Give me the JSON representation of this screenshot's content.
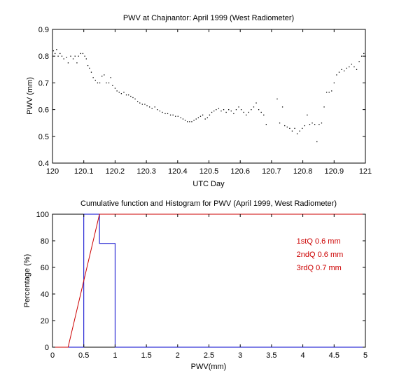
{
  "chart_data": [
    {
      "type": "scatter",
      "title": "PWV at Chajnantor: April 1999 (West Radiometer)",
      "xlabel": "UTC Day",
      "ylabel": "PWV (mm)",
      "xlim": [
        120,
        121
      ],
      "ylim": [
        0.4,
        0.9
      ],
      "xticks": [
        120,
        120.1,
        120.2,
        120.3,
        120.4,
        120.5,
        120.6,
        120.7,
        120.8,
        120.9,
        121
      ],
      "xtick_labels": [
        "120",
        "120.1",
        "120.2",
        "120.3",
        "120.4",
        "120.5",
        "120.6",
        "120.7",
        "120.8",
        "120.9",
        "121"
      ],
      "yticks": [
        0.4,
        0.5,
        0.6,
        0.7,
        0.8,
        0.9
      ],
      "ytick_labels": [
        "0.4",
        "0.5",
        "0.6",
        "0.7",
        "0.8",
        "0.9"
      ],
      "grid": false,
      "marker_color": "#000000",
      "points": [
        [
          120.003,
          0.82
        ],
        [
          120.008,
          0.81
        ],
        [
          120.013,
          0.825
        ],
        [
          120.018,
          0.8
        ],
        [
          120.024,
          0.81
        ],
        [
          120.03,
          0.8
        ],
        [
          120.036,
          0.79
        ],
        [
          120.045,
          0.795
        ],
        [
          120.05,
          0.775
        ],
        [
          120.058,
          0.8
        ],
        [
          120.066,
          0.79
        ],
        [
          120.072,
          0.8
        ],
        [
          120.078,
          0.775
        ],
        [
          120.083,
          0.8
        ],
        [
          120.09,
          0.81
        ],
        [
          120.097,
          0.81
        ],
        [
          120.103,
          0.8
        ],
        [
          120.108,
          0.79
        ],
        [
          120.113,
          0.765
        ],
        [
          120.118,
          0.755
        ],
        [
          120.124,
          0.74
        ],
        [
          120.13,
          0.72
        ],
        [
          120.137,
          0.71
        ],
        [
          120.144,
          0.7
        ],
        [
          120.151,
          0.7
        ],
        [
          120.158,
          0.725
        ],
        [
          120.165,
          0.73
        ],
        [
          120.172,
          0.7
        ],
        [
          120.18,
          0.7
        ],
        [
          120.186,
          0.72
        ],
        [
          120.192,
          0.69
        ],
        [
          120.2,
          0.68
        ],
        [
          120.206,
          0.67
        ],
        [
          120.213,
          0.665
        ],
        [
          120.22,
          0.66
        ],
        [
          120.228,
          0.665
        ],
        [
          120.236,
          0.655
        ],
        [
          120.243,
          0.655
        ],
        [
          120.25,
          0.65
        ],
        [
          120.257,
          0.645
        ],
        [
          120.264,
          0.64
        ],
        [
          120.272,
          0.63
        ],
        [
          120.279,
          0.625
        ],
        [
          120.287,
          0.62
        ],
        [
          120.295,
          0.62
        ],
        [
          120.302,
          0.615
        ],
        [
          120.31,
          0.61
        ],
        [
          120.318,
          0.605
        ],
        [
          120.327,
          0.61
        ],
        [
          120.335,
          0.6
        ],
        [
          120.343,
          0.595
        ],
        [
          120.351,
          0.59
        ],
        [
          120.36,
          0.585
        ],
        [
          120.368,
          0.585
        ],
        [
          120.377,
          0.58
        ],
        [
          120.385,
          0.58
        ],
        [
          120.393,
          0.575
        ],
        [
          120.401,
          0.575
        ],
        [
          120.41,
          0.57
        ],
        [
          120.417,
          0.565
        ],
        [
          120.424,
          0.56
        ],
        [
          120.431,
          0.555
        ],
        [
          120.438,
          0.555
        ],
        [
          120.445,
          0.555
        ],
        [
          120.452,
          0.56
        ],
        [
          120.459,
          0.565
        ],
        [
          120.466,
          0.57
        ],
        [
          120.473,
          0.575
        ],
        [
          120.48,
          0.58
        ],
        [
          120.488,
          0.565
        ],
        [
          120.495,
          0.57
        ],
        [
          120.502,
          0.58
        ],
        [
          120.509,
          0.59
        ],
        [
          120.516,
          0.595
        ],
        [
          120.523,
          0.6
        ],
        [
          120.531,
          0.605
        ],
        [
          120.539,
          0.595
        ],
        [
          120.547,
          0.6
        ],
        [
          120.555,
          0.59
        ],
        [
          120.563,
          0.6
        ],
        [
          120.571,
          0.595
        ],
        [
          120.579,
          0.585
        ],
        [
          120.587,
          0.6
        ],
        [
          120.595,
          0.61
        ],
        [
          120.603,
          0.6
        ],
        [
          120.611,
          0.59
        ],
        [
          120.619,
          0.58
        ],
        [
          120.627,
          0.59
        ],
        [
          120.635,
          0.6
        ],
        [
          120.643,
          0.61
        ],
        [
          120.651,
          0.625
        ],
        [
          120.659,
          0.6
        ],
        [
          120.667,
          0.59
        ],
        [
          120.675,
          0.58
        ],
        [
          120.683,
          0.545
        ],
        [
          120.718,
          0.64
        ],
        [
          120.726,
          0.55
        ],
        [
          120.735,
          0.61
        ],
        [
          120.742,
          0.54
        ],
        [
          120.75,
          0.535
        ],
        [
          120.758,
          0.53
        ],
        [
          120.766,
          0.52
        ],
        [
          120.774,
          0.53
        ],
        [
          120.782,
          0.51
        ],
        [
          120.79,
          0.52
        ],
        [
          120.798,
          0.53
        ],
        [
          120.806,
          0.54
        ],
        [
          120.814,
          0.58
        ],
        [
          120.822,
          0.545
        ],
        [
          120.83,
          0.55
        ],
        [
          120.838,
          0.545
        ],
        [
          120.845,
          0.48
        ],
        [
          120.852,
          0.545
        ],
        [
          120.86,
          0.55
        ],
        [
          120.868,
          0.61
        ],
        [
          120.876,
          0.665
        ],
        [
          120.884,
          0.665
        ],
        [
          120.892,
          0.67
        ],
        [
          120.9,
          0.7
        ],
        [
          120.908,
          0.73
        ],
        [
          120.916,
          0.74
        ],
        [
          120.924,
          0.75
        ],
        [
          120.932,
          0.745
        ],
        [
          120.94,
          0.755
        ],
        [
          120.948,
          0.76
        ],
        [
          120.956,
          0.77
        ],
        [
          120.964,
          0.76
        ],
        [
          120.972,
          0.75
        ],
        [
          120.98,
          0.78
        ],
        [
          120.988,
          0.8
        ],
        [
          120.995,
          0.81
        ],
        [
          121.0,
          0.8
        ]
      ]
    },
    {
      "type": "line",
      "title": "Cumulative function and Histogram for PWV (April 1999, West Radiometer)",
      "xlabel": "PWV(mm)",
      "ylabel": "Percentage (%)",
      "xlim": [
        0,
        5
      ],
      "ylim": [
        0,
        100
      ],
      "xticks": [
        0,
        0.5,
        1,
        1.5,
        2,
        2.5,
        3,
        3.5,
        4,
        4.5,
        5
      ],
      "xtick_labels": [
        "0",
        "0.5",
        "1",
        "1.5",
        "2",
        "2.5",
        "3",
        "3.5",
        "4",
        "4.5",
        "5"
      ],
      "yticks": [
        0,
        20,
        40,
        60,
        80,
        100
      ],
      "ytick_labels": [
        "0",
        "20",
        "40",
        "60",
        "80",
        "100"
      ],
      "grid": false,
      "series": [
        {
          "color": "#0000cc",
          "x": [
            0,
            0.5,
            0.5,
            0.75,
            0.75,
            1.0,
            1.0,
            5
          ],
          "y": [
            0,
            0,
            100,
            100,
            78,
            78,
            0,
            0
          ]
        },
        {
          "color": "#cc0000",
          "x": [
            0,
            0.25,
            0.75,
            5
          ],
          "y": [
            0,
            0,
            100,
            100
          ]
        }
      ],
      "annotations": [
        {
          "text": "1stQ 0.6 mm",
          "x": 3.9,
          "y": 80
        },
        {
          "text": "2ndQ 0.6 mm",
          "x": 3.9,
          "y": 70
        },
        {
          "text": "3rdQ 0.7 mm",
          "x": 3.9,
          "y": 60
        }
      ],
      "annotation_color": "#cc0000"
    }
  ]
}
